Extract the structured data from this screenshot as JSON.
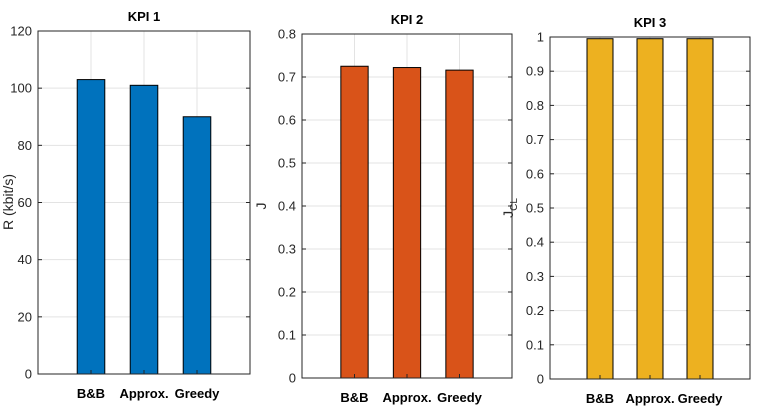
{
  "chart_data": [
    {
      "type": "bar",
      "title": "KPI 1",
      "categories": [
        "B&B",
        "Approx.",
        "Greedy"
      ],
      "values": [
        103,
        101,
        90
      ],
      "ylabel": "R (kbit/s)",
      "ylabel_sub": "",
      "ylim": [
        0,
        120
      ],
      "yticks": [
        0,
        20,
        40,
        60,
        80,
        100,
        120
      ],
      "ytick_labels": [
        "0",
        "20",
        "40",
        "60",
        "80",
        "100",
        "120"
      ],
      "grid": true,
      "color": "#0072BD"
    },
    {
      "type": "bar",
      "title": "KPI 2",
      "categories": [
        "B&B",
        "Approx.",
        "Greedy"
      ],
      "values": [
        0.725,
        0.722,
        0.716
      ],
      "ylabel": "J",
      "ylabel_sub": "",
      "ylim": [
        0,
        0.8
      ],
      "yticks": [
        0,
        0.1,
        0.2,
        0.3,
        0.4,
        0.5,
        0.6,
        0.7,
        0.8
      ],
      "ytick_labels": [
        "0",
        "0.1",
        "0.2",
        "0.3",
        "0.4",
        "0.5",
        "0.6",
        "0.7",
        "0.8"
      ],
      "grid": true,
      "color": "#D95319"
    },
    {
      "type": "bar",
      "title": "KPI 3",
      "categories": [
        "B&B",
        "Approx.",
        "Greedy"
      ],
      "values": [
        0.995,
        0.995,
        0.995
      ],
      "ylabel": "J",
      "ylabel_sub": "CL",
      "ylim": [
        0,
        1
      ],
      "yticks": [
        0,
        0.1,
        0.2,
        0.3,
        0.4,
        0.5,
        0.6,
        0.7,
        0.8,
        0.9,
        1
      ],
      "ytick_labels": [
        "0",
        "0.1",
        "0.2",
        "0.3",
        "0.4",
        "0.5",
        "0.6",
        "0.7",
        "0.8",
        "0.9",
        "1"
      ],
      "grid": true,
      "color": "#EDB120"
    }
  ]
}
